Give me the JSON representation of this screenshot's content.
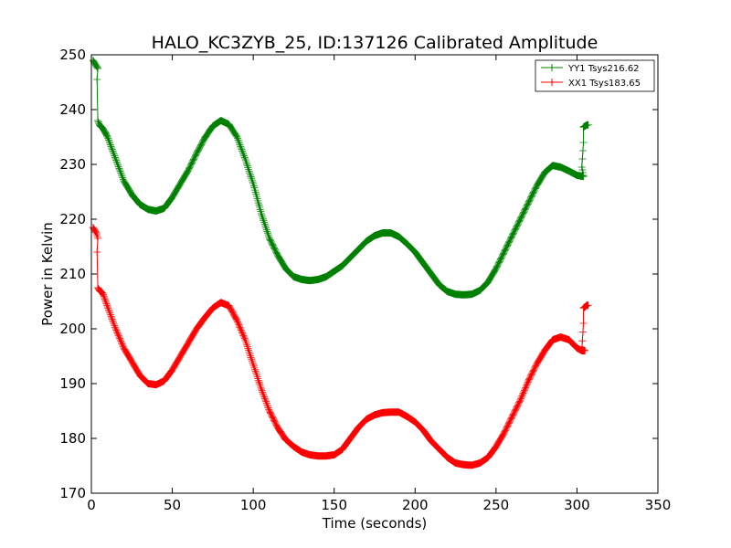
{
  "chart_data": {
    "type": "line",
    "title": "HALO_KC3ZYB_25, ID:137126 Calibrated Amplitude",
    "xlabel": "Time (seconds)",
    "ylabel": "Power in Kelvin",
    "xlim": [
      0,
      350
    ],
    "ylim": [
      170,
      250
    ],
    "xticks": [
      "0",
      "50",
      "100",
      "150",
      "200",
      "250",
      "300",
      "350"
    ],
    "yticks": [
      "170",
      "180",
      "190",
      "200",
      "210",
      "220",
      "230",
      "240",
      "250"
    ],
    "grid": false,
    "legend": {
      "placement": "top-right"
    },
    "series": [
      {
        "name": "YY1 Tsys216.62",
        "color": "#008000",
        "marker": "plus",
        "points": [
          [
            1,
            249
          ],
          [
            2,
            248.5
          ],
          [
            3,
            248
          ],
          [
            4,
            247.5
          ],
          [
            3.5,
            245.5
          ],
          [
            4,
            238
          ],
          [
            5,
            237.2
          ],
          [
            7,
            236.6
          ],
          [
            10,
            235
          ],
          [
            15,
            231
          ],
          [
            20,
            227
          ],
          [
            25,
            224.5
          ],
          [
            30,
            222.7
          ],
          [
            35,
            221.8
          ],
          [
            40,
            221.5
          ],
          [
            45,
            222
          ],
          [
            50,
            224
          ],
          [
            55,
            226.5
          ],
          [
            60,
            229
          ],
          [
            65,
            232
          ],
          [
            70,
            234.8
          ],
          [
            75,
            237
          ],
          [
            80,
            238
          ],
          [
            85,
            237.3
          ],
          [
            90,
            235
          ],
          [
            95,
            231
          ],
          [
            100,
            226.5
          ],
          [
            105,
            221
          ],
          [
            110,
            216.5
          ],
          [
            115,
            213.5
          ],
          [
            120,
            211
          ],
          [
            125,
            209.5
          ],
          [
            130,
            209
          ],
          [
            135,
            208.8
          ],
          [
            140,
            209
          ],
          [
            145,
            209.5
          ],
          [
            150,
            210.5
          ],
          [
            155,
            211.5
          ],
          [
            160,
            213
          ],
          [
            165,
            214.5
          ],
          [
            170,
            216
          ],
          [
            175,
            217
          ],
          [
            180,
            217.5
          ],
          [
            185,
            217.5
          ],
          [
            190,
            216.8
          ],
          [
            195,
            215.5
          ],
          [
            200,
            214
          ],
          [
            205,
            212
          ],
          [
            210,
            210
          ],
          [
            215,
            208
          ],
          [
            220,
            206.8
          ],
          [
            225,
            206.3
          ],
          [
            230,
            206.2
          ],
          [
            235,
            206.3
          ],
          [
            240,
            207
          ],
          [
            245,
            208.5
          ],
          [
            250,
            211
          ],
          [
            255,
            214
          ],
          [
            260,
            217
          ],
          [
            265,
            220
          ],
          [
            270,
            223
          ],
          [
            275,
            226
          ],
          [
            280,
            228.5
          ],
          [
            285,
            229.8
          ],
          [
            290,
            229.5
          ],
          [
            295,
            228.8
          ],
          [
            300,
            228
          ],
          [
            304,
            227.8
          ],
          [
            304,
            228
          ],
          [
            303,
            229.5
          ],
          [
            304,
            234
          ],
          [
            304,
            236.8
          ],
          [
            305,
            237
          ],
          [
            306,
            237.2
          ],
          [
            307,
            237.2
          ]
        ]
      },
      {
        "name": "XX1 Tsys183.65",
        "color": "#ff0000",
        "marker": "plus",
        "points": [
          [
            1,
            218.5
          ],
          [
            2,
            218
          ],
          [
            3,
            217.5
          ],
          [
            4,
            216.5
          ],
          [
            3.5,
            214
          ],
          [
            4,
            207.5
          ],
          [
            5,
            207
          ],
          [
            7,
            206.5
          ],
          [
            10,
            204
          ],
          [
            15,
            200
          ],
          [
            20,
            196.5
          ],
          [
            25,
            194
          ],
          [
            30,
            191.5
          ],
          [
            35,
            190
          ],
          [
            40,
            189.8
          ],
          [
            45,
            190.5
          ],
          [
            50,
            192.5
          ],
          [
            55,
            195
          ],
          [
            60,
            197.5
          ],
          [
            65,
            200
          ],
          [
            70,
            202
          ],
          [
            75,
            203.8
          ],
          [
            80,
            204.8
          ],
          [
            85,
            204.2
          ],
          [
            90,
            201.5
          ],
          [
            95,
            198
          ],
          [
            100,
            193.5
          ],
          [
            105,
            189
          ],
          [
            110,
            185
          ],
          [
            115,
            182
          ],
          [
            120,
            179.8
          ],
          [
            125,
            178.5
          ],
          [
            130,
            177.5
          ],
          [
            135,
            177
          ],
          [
            140,
            176.8
          ],
          [
            145,
            176.8
          ],
          [
            150,
            177
          ],
          [
            155,
            178
          ],
          [
            160,
            180
          ],
          [
            165,
            182
          ],
          [
            170,
            183.5
          ],
          [
            175,
            184.3
          ],
          [
            180,
            184.7
          ],
          [
            185,
            184.8
          ],
          [
            190,
            184.8
          ],
          [
            195,
            184
          ],
          [
            200,
            183
          ],
          [
            205,
            181.5
          ],
          [
            210,
            179.5
          ],
          [
            215,
            178
          ],
          [
            220,
            176.5
          ],
          [
            225,
            175.5
          ],
          [
            230,
            175.2
          ],
          [
            235,
            175.1
          ],
          [
            240,
            175.5
          ],
          [
            245,
            176.5
          ],
          [
            250,
            178.5
          ],
          [
            255,
            181
          ],
          [
            260,
            184
          ],
          [
            265,
            187
          ],
          [
            270,
            190.5
          ],
          [
            275,
            193.5
          ],
          [
            280,
            196
          ],
          [
            285,
            198
          ],
          [
            290,
            198.5
          ],
          [
            295,
            198
          ],
          [
            300,
            196.5
          ],
          [
            303,
            196
          ],
          [
            305,
            196
          ],
          [
            303,
            196.2
          ],
          [
            304,
            201
          ],
          [
            304,
            203.8
          ],
          [
            305,
            204
          ],
          [
            306,
            204.3
          ],
          [
            307,
            204.3
          ]
        ]
      }
    ]
  }
}
